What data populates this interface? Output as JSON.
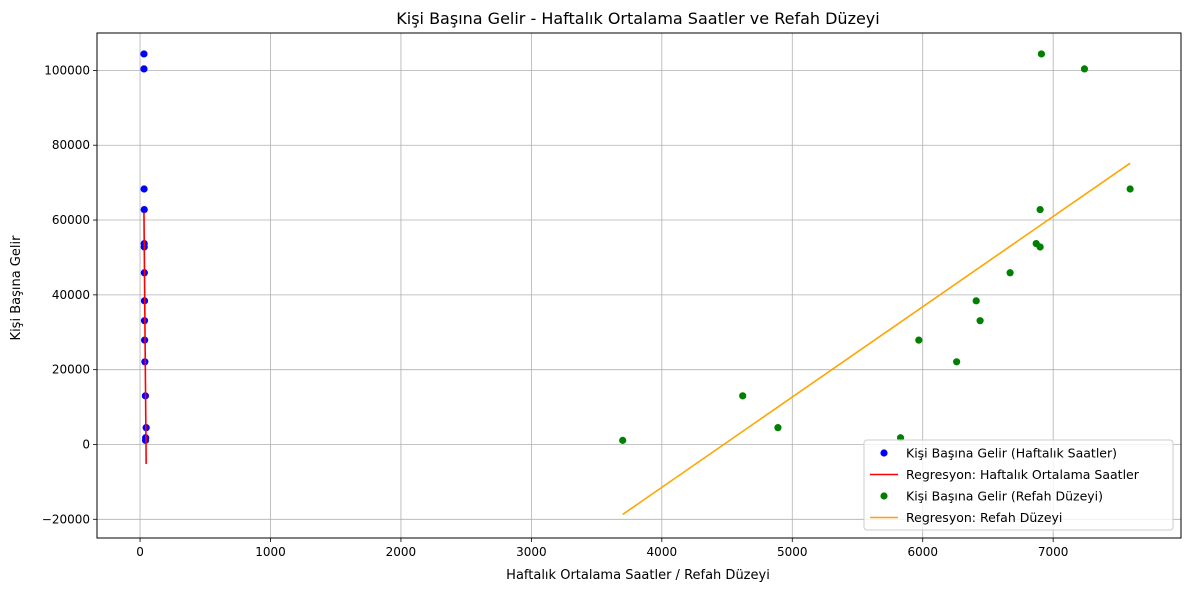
{
  "chart_data": {
    "type": "scatter",
    "title": "Kişi Başına Gelir - Haftalık Ortalama Saatler ve Refah Düzeyi",
    "xlabel": "Haftalık Ortalama Saatler / Refah Düzeyi",
    "ylabel": "Kişi Başına Gelir",
    "xlim": [
      -330,
      7980
    ],
    "ylim": [
      -25000,
      110000
    ],
    "xticks": [
      0,
      1000,
      2000,
      3000,
      4000,
      5000,
      6000,
      7000
    ],
    "xtick_labels": [
      "0",
      "1000",
      "2000",
      "3000",
      "4000",
      "5000",
      "6000",
      "7000"
    ],
    "yticks": [
      -20000,
      0,
      20000,
      40000,
      60000,
      80000,
      100000
    ],
    "ytick_labels": [
      "−20000",
      "0",
      "20000",
      "40000",
      "60000",
      "80000",
      "100000"
    ],
    "grid": true,
    "legend_position": "bottom-right",
    "series": [
      {
        "name": "Kişi Başına Gelir (Haftalık Saatler)",
        "kind": "scatter",
        "color": "#0000ff",
        "points": [
          [
            30,
            104400
          ],
          [
            30,
            100400
          ],
          [
            31,
            68300
          ],
          [
            32,
            62800
          ],
          [
            32,
            53700
          ],
          [
            32,
            52800
          ],
          [
            33,
            45900
          ],
          [
            34,
            38400
          ],
          [
            34,
            33100
          ],
          [
            35,
            27900
          ],
          [
            37,
            22100
          ],
          [
            41,
            13000
          ],
          [
            47,
            4500
          ],
          [
            43,
            1800
          ],
          [
            42,
            1100
          ]
        ]
      },
      {
        "name": "Regresyon: Haftalık Ortalama Saatler",
        "kind": "line",
        "color": "#ff0000",
        "points": [
          [
            30,
            62000
          ],
          [
            47,
            -5200
          ]
        ]
      },
      {
        "name": "Kişi Başına Gelir (Refah Düzeyi)",
        "kind": "scatter",
        "color": "#008000",
        "points": [
          [
            6910,
            104400
          ],
          [
            7240,
            100400
          ],
          [
            7590,
            68300
          ],
          [
            6900,
            62800
          ],
          [
            6870,
            53700
          ],
          [
            6900,
            52800
          ],
          [
            6670,
            45900
          ],
          [
            6410,
            38400
          ],
          [
            6440,
            33100
          ],
          [
            5970,
            27900
          ],
          [
            6260,
            22100
          ],
          [
            4620,
            13000
          ],
          [
            4890,
            4500
          ],
          [
            5830,
            1800
          ],
          [
            3700,
            1100
          ]
        ]
      },
      {
        "name": "Regresyon: Refah Düzeyi",
        "kind": "line",
        "color": "#ffa500",
        "points": [
          [
            3700,
            -18700
          ],
          [
            7590,
            75200
          ]
        ]
      }
    ]
  }
}
